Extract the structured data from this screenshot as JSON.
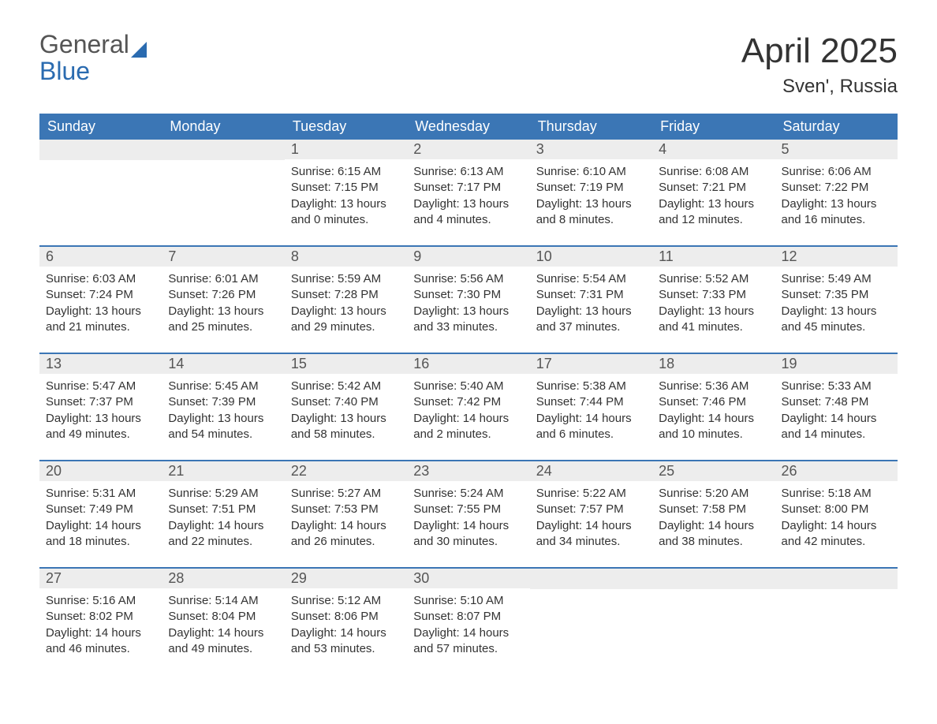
{
  "logo": {
    "text1": "General",
    "text2": "Blue",
    "color1": "#555555",
    "color2": "#2a6bb0",
    "iconColor": "#2a6bb0"
  },
  "title": "April 2025",
  "subtitle": "Sven', Russia",
  "colors": {
    "headerBg": "#3b76b5",
    "headerText": "#ffffff",
    "dayNumBg": "#ededed",
    "dayNumText": "#555555",
    "bodyText": "#333333",
    "rowBorder": "#3b76b5",
    "pageBg": "#ffffff"
  },
  "fontsize": {
    "title": 44,
    "subtitle": 24,
    "dayhead": 18,
    "daynum": 18,
    "daycontent": 15,
    "logo": 32
  },
  "dayHeaders": [
    "Sunday",
    "Monday",
    "Tuesday",
    "Wednesday",
    "Thursday",
    "Friday",
    "Saturday"
  ],
  "weeks": [
    [
      {
        "num": "",
        "lines": [
          "",
          "",
          "",
          ""
        ]
      },
      {
        "num": "",
        "lines": [
          "",
          "",
          "",
          ""
        ]
      },
      {
        "num": "1",
        "lines": [
          "Sunrise: 6:15 AM",
          "Sunset: 7:15 PM",
          "Daylight: 13 hours",
          "and 0 minutes."
        ]
      },
      {
        "num": "2",
        "lines": [
          "Sunrise: 6:13 AM",
          "Sunset: 7:17 PM",
          "Daylight: 13 hours",
          "and 4 minutes."
        ]
      },
      {
        "num": "3",
        "lines": [
          "Sunrise: 6:10 AM",
          "Sunset: 7:19 PM",
          "Daylight: 13 hours",
          "and 8 minutes."
        ]
      },
      {
        "num": "4",
        "lines": [
          "Sunrise: 6:08 AM",
          "Sunset: 7:21 PM",
          "Daylight: 13 hours",
          "and 12 minutes."
        ]
      },
      {
        "num": "5",
        "lines": [
          "Sunrise: 6:06 AM",
          "Sunset: 7:22 PM",
          "Daylight: 13 hours",
          "and 16 minutes."
        ]
      }
    ],
    [
      {
        "num": "6",
        "lines": [
          "Sunrise: 6:03 AM",
          "Sunset: 7:24 PM",
          "Daylight: 13 hours",
          "and 21 minutes."
        ]
      },
      {
        "num": "7",
        "lines": [
          "Sunrise: 6:01 AM",
          "Sunset: 7:26 PM",
          "Daylight: 13 hours",
          "and 25 minutes."
        ]
      },
      {
        "num": "8",
        "lines": [
          "Sunrise: 5:59 AM",
          "Sunset: 7:28 PM",
          "Daylight: 13 hours",
          "and 29 minutes."
        ]
      },
      {
        "num": "9",
        "lines": [
          "Sunrise: 5:56 AM",
          "Sunset: 7:30 PM",
          "Daylight: 13 hours",
          "and 33 minutes."
        ]
      },
      {
        "num": "10",
        "lines": [
          "Sunrise: 5:54 AM",
          "Sunset: 7:31 PM",
          "Daylight: 13 hours",
          "and 37 minutes."
        ]
      },
      {
        "num": "11",
        "lines": [
          "Sunrise: 5:52 AM",
          "Sunset: 7:33 PM",
          "Daylight: 13 hours",
          "and 41 minutes."
        ]
      },
      {
        "num": "12",
        "lines": [
          "Sunrise: 5:49 AM",
          "Sunset: 7:35 PM",
          "Daylight: 13 hours",
          "and 45 minutes."
        ]
      }
    ],
    [
      {
        "num": "13",
        "lines": [
          "Sunrise: 5:47 AM",
          "Sunset: 7:37 PM",
          "Daylight: 13 hours",
          "and 49 minutes."
        ]
      },
      {
        "num": "14",
        "lines": [
          "Sunrise: 5:45 AM",
          "Sunset: 7:39 PM",
          "Daylight: 13 hours",
          "and 54 minutes."
        ]
      },
      {
        "num": "15",
        "lines": [
          "Sunrise: 5:42 AM",
          "Sunset: 7:40 PM",
          "Daylight: 13 hours",
          "and 58 minutes."
        ]
      },
      {
        "num": "16",
        "lines": [
          "Sunrise: 5:40 AM",
          "Sunset: 7:42 PM",
          "Daylight: 14 hours",
          "and 2 minutes."
        ]
      },
      {
        "num": "17",
        "lines": [
          "Sunrise: 5:38 AM",
          "Sunset: 7:44 PM",
          "Daylight: 14 hours",
          "and 6 minutes."
        ]
      },
      {
        "num": "18",
        "lines": [
          "Sunrise: 5:36 AM",
          "Sunset: 7:46 PM",
          "Daylight: 14 hours",
          "and 10 minutes."
        ]
      },
      {
        "num": "19",
        "lines": [
          "Sunrise: 5:33 AM",
          "Sunset: 7:48 PM",
          "Daylight: 14 hours",
          "and 14 minutes."
        ]
      }
    ],
    [
      {
        "num": "20",
        "lines": [
          "Sunrise: 5:31 AM",
          "Sunset: 7:49 PM",
          "Daylight: 14 hours",
          "and 18 minutes."
        ]
      },
      {
        "num": "21",
        "lines": [
          "Sunrise: 5:29 AM",
          "Sunset: 7:51 PM",
          "Daylight: 14 hours",
          "and 22 minutes."
        ]
      },
      {
        "num": "22",
        "lines": [
          "Sunrise: 5:27 AM",
          "Sunset: 7:53 PM",
          "Daylight: 14 hours",
          "and 26 minutes."
        ]
      },
      {
        "num": "23",
        "lines": [
          "Sunrise: 5:24 AM",
          "Sunset: 7:55 PM",
          "Daylight: 14 hours",
          "and 30 minutes."
        ]
      },
      {
        "num": "24",
        "lines": [
          "Sunrise: 5:22 AM",
          "Sunset: 7:57 PM",
          "Daylight: 14 hours",
          "and 34 minutes."
        ]
      },
      {
        "num": "25",
        "lines": [
          "Sunrise: 5:20 AM",
          "Sunset: 7:58 PM",
          "Daylight: 14 hours",
          "and 38 minutes."
        ]
      },
      {
        "num": "26",
        "lines": [
          "Sunrise: 5:18 AM",
          "Sunset: 8:00 PM",
          "Daylight: 14 hours",
          "and 42 minutes."
        ]
      }
    ],
    [
      {
        "num": "27",
        "lines": [
          "Sunrise: 5:16 AM",
          "Sunset: 8:02 PM",
          "Daylight: 14 hours",
          "and 46 minutes."
        ]
      },
      {
        "num": "28",
        "lines": [
          "Sunrise: 5:14 AM",
          "Sunset: 8:04 PM",
          "Daylight: 14 hours",
          "and 49 minutes."
        ]
      },
      {
        "num": "29",
        "lines": [
          "Sunrise: 5:12 AM",
          "Sunset: 8:06 PM",
          "Daylight: 14 hours",
          "and 53 minutes."
        ]
      },
      {
        "num": "30",
        "lines": [
          "Sunrise: 5:10 AM",
          "Sunset: 8:07 PM",
          "Daylight: 14 hours",
          "and 57 minutes."
        ]
      },
      {
        "num": "",
        "lines": [
          "",
          "",
          "",
          ""
        ]
      },
      {
        "num": "",
        "lines": [
          "",
          "",
          "",
          ""
        ]
      },
      {
        "num": "",
        "lines": [
          "",
          "",
          "",
          ""
        ]
      }
    ]
  ]
}
